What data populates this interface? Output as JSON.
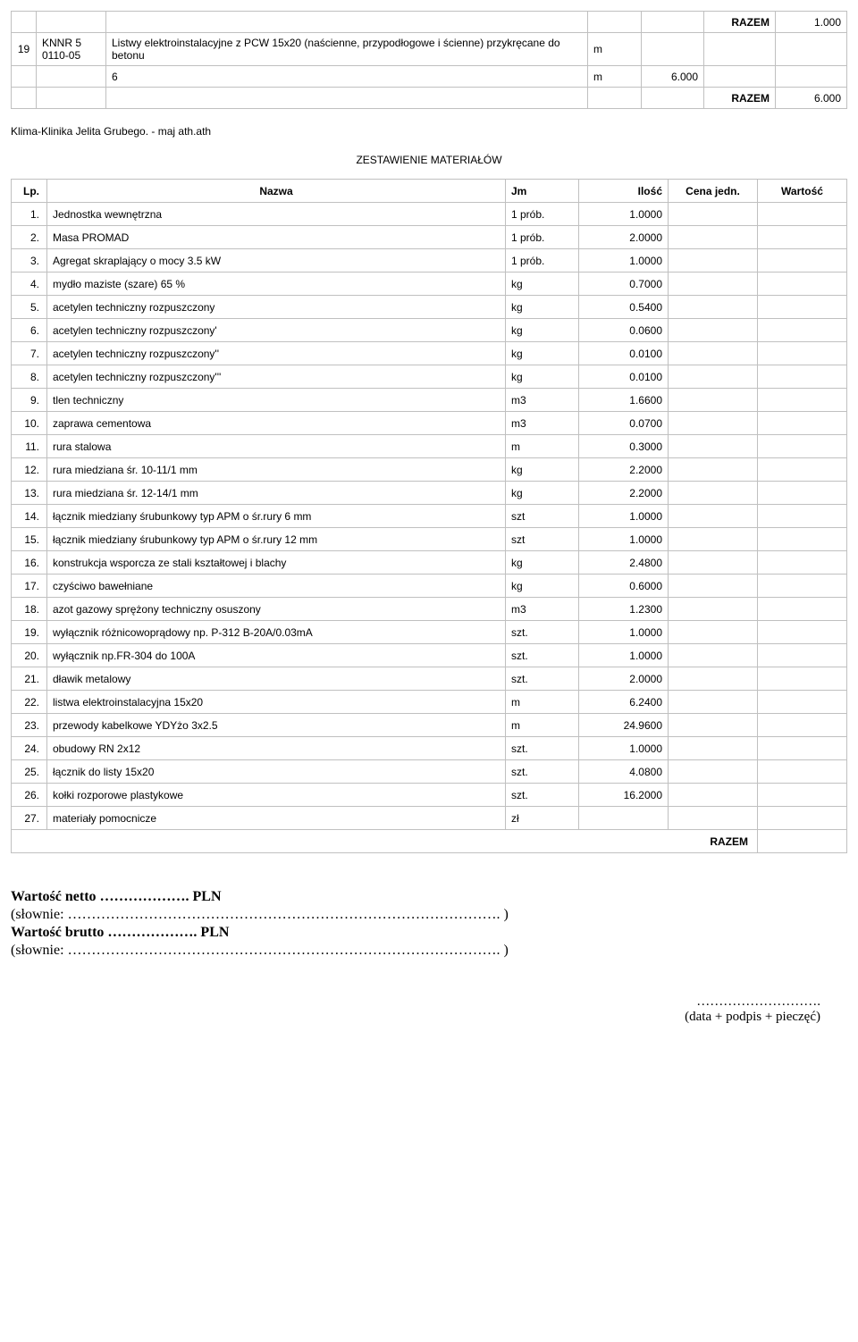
{
  "topTable": {
    "razem1_label": "RAZEM",
    "razem1_value": "1.000",
    "row": {
      "lp": "19",
      "code": "KNNR 5\n0110-05",
      "desc": "Listwy elektroinstalacyjne z PCW 15x20 (naścienne, przypodłogowe i ścienne) przykręcane do betonu",
      "jm": "m"
    },
    "mid_qty_label": "6",
    "mid_jm": "m",
    "mid_qty_val": "6.000",
    "razem2_label": "RAZEM",
    "razem2_value": "6.000"
  },
  "headerInfo": "Klima-Klinika Jelita Grubego. - maj ath.ath",
  "zestawienieTitle": "ZESTAWIENIE MATERIAŁÓW",
  "matHeaders": {
    "lp": "Lp.",
    "nazwa": "Nazwa",
    "jm": "Jm",
    "ilosc": "Ilość",
    "cena": "Cena jedn.",
    "wartosc": "Wartość"
  },
  "materials": [
    {
      "lp": "1.",
      "name": "Jednostka wewnętrzna",
      "jm": "1 prób.",
      "ilosc": "1.0000"
    },
    {
      "lp": "2.",
      "name": "Masa PROMAD",
      "jm": "1 prób.",
      "ilosc": "2.0000"
    },
    {
      "lp": "3.",
      "name": "Agregat skraplający o mocy 3.5 kW",
      "jm": "1 prób.",
      "ilosc": "1.0000"
    },
    {
      "lp": "4.",
      "name": "mydło maziste (szare) 65 %",
      "jm": "kg",
      "ilosc": "0.7000"
    },
    {
      "lp": "5.",
      "name": "acetylen techniczny rozpuszczony",
      "jm": "kg",
      "ilosc": "0.5400"
    },
    {
      "lp": "6.",
      "name": "acetylen techniczny rozpuszczony'",
      "jm": "kg",
      "ilosc": "0.0600"
    },
    {
      "lp": "7.",
      "name": "acetylen techniczny rozpuszczony''",
      "jm": "kg",
      "ilosc": "0.0100"
    },
    {
      "lp": "8.",
      "name": "acetylen techniczny rozpuszczony'''",
      "jm": "kg",
      "ilosc": "0.0100"
    },
    {
      "lp": "9.",
      "name": "tlen techniczny",
      "jm": "m3",
      "ilosc": "1.6600"
    },
    {
      "lp": "10.",
      "name": "zaprawa cementowa",
      "jm": "m3",
      "ilosc": "0.0700"
    },
    {
      "lp": "11.",
      "name": "rura stalowa",
      "jm": "m",
      "ilosc": "0.3000"
    },
    {
      "lp": "12.",
      "name": "rura miedziana śr. 10-11/1 mm",
      "jm": "kg",
      "ilosc": "2.2000"
    },
    {
      "lp": "13.",
      "name": "rura miedziana śr. 12-14/1 mm",
      "jm": "kg",
      "ilosc": "2.2000"
    },
    {
      "lp": "14.",
      "name": "łącznik miedziany śrubunkowy typ APM o śr.rury 6 mm",
      "jm": "szt",
      "ilosc": "1.0000"
    },
    {
      "lp": "15.",
      "name": "łącznik miedziany śrubunkowy typ APM o śr.rury 12 mm",
      "jm": "szt",
      "ilosc": "1.0000"
    },
    {
      "lp": "16.",
      "name": "konstrukcja wsporcza ze stali kształtowej i blachy",
      "jm": "kg",
      "ilosc": "2.4800"
    },
    {
      "lp": "17.",
      "name": "czyściwo bawełniane",
      "jm": "kg",
      "ilosc": "0.6000"
    },
    {
      "lp": "18.",
      "name": "azot gazowy sprężony techniczny osuszony",
      "jm": "m3",
      "ilosc": "1.2300"
    },
    {
      "lp": "19.",
      "name": "wyłącznik różnicowoprądowy np. P-312 B-20A/0.03mA",
      "jm": "szt.",
      "ilosc": "1.0000"
    },
    {
      "lp": "20.",
      "name": "wyłącznik np.FR-304 do 100A",
      "jm": "szt.",
      "ilosc": "1.0000"
    },
    {
      "lp": "21.",
      "name": "dławik metalowy",
      "jm": "szt.",
      "ilosc": "2.0000"
    },
    {
      "lp": "22.",
      "name": "listwa elektroinstalacyjna 15x20",
      "jm": "m",
      "ilosc": "6.2400"
    },
    {
      "lp": "23.",
      "name": "przewody kabelkowe YDYżo 3x2.5",
      "jm": "m",
      "ilosc": "24.9600"
    },
    {
      "lp": "24.",
      "name": "obudowy RN 2x12",
      "jm": "szt.",
      "ilosc": "1.0000"
    },
    {
      "lp": "25.",
      "name": "łącznik do listy 15x20",
      "jm": "szt.",
      "ilosc": "4.0800"
    },
    {
      "lp": "26.",
      "name": "kołki rozporowe plastykowe",
      "jm": "szt.",
      "ilosc": "16.2000"
    },
    {
      "lp": "27.",
      "name": "materiały pomocnicze",
      "jm": "zł",
      "ilosc": ""
    }
  ],
  "matRazemLabel": "RAZEM",
  "footer": {
    "line1": "Wartość netto ………………. PLN",
    "line2": "(słownie: ………………………………………………………………………………. )",
    "line3": "Wartość brutto ………………. PLN",
    "line4": "(słownie: ………………………………………………………………………………. )",
    "sign1": "……………………….",
    "sign2": "(data + podpis + pieczęć)"
  }
}
